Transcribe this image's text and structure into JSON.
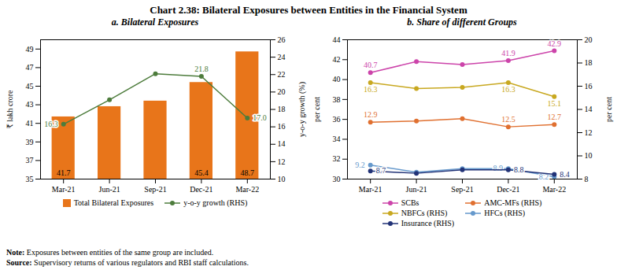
{
  "title": "Chart 2.38: Bilateral Exposures between Entities in the Financial System",
  "annotations": [
    "Note: Exposures between entities of the same group are included.",
    "Source: Supervisory returns of various regulators and RBI staff calculations."
  ],
  "chart_data": [
    {
      "type": "bar",
      "title": "a. Bilateral Exposures",
      "categories": [
        "Mar-21",
        "Jun-21",
        "Sep-21",
        "Dec-21",
        "Mar-22"
      ],
      "ylabel": "₹ lakh crore",
      "y2label": "y-o-y growth (%)",
      "ylim": [
        35,
        50
      ],
      "yticks": [
        35,
        37,
        39,
        41,
        43,
        45,
        47,
        49
      ],
      "y2lim": [
        10,
        26
      ],
      "y2ticks": [
        10,
        12,
        14,
        16,
        18,
        20,
        22,
        24,
        26
      ],
      "legend": "bottom",
      "series": [
        {
          "name": "Total Bilateral Exposures",
          "type": "bar",
          "color": "#E8751A",
          "values": [
            41.7,
            42.8,
            43.4,
            45.4,
            48.7
          ],
          "value_labels": [
            "41.7",
            null,
            null,
            "45.4",
            "48.7"
          ]
        },
        {
          "name": "y-o-y growth (RHS)",
          "type": "line",
          "axis": "y2",
          "color": "#4d7c3c",
          "marker": "o",
          "values": [
            16.3,
            19.1,
            22.1,
            21.8,
            17.0
          ],
          "value_labels": [
            "16.3",
            null,
            null,
            "21.8",
            "17.0"
          ]
        }
      ]
    },
    {
      "type": "line",
      "title": "b. Share of different Groups",
      "categories": [
        "Mar-21",
        "Jun-21",
        "Sep-21",
        "Dec-21",
        "Mar-22"
      ],
      "ylabel": "per cent",
      "y2label": "per cent",
      "ylim": [
        30,
        44
      ],
      "yticks": [
        30,
        32,
        34,
        36,
        38,
        40,
        42,
        44
      ],
      "y2lim": [
        8,
        20
      ],
      "y2ticks": [
        8,
        10,
        12,
        14,
        16,
        18,
        20
      ],
      "legend": "bottom",
      "series": [
        {
          "name": "SCBs",
          "type": "line",
          "color": "#cc44aa",
          "marker": "o",
          "values": [
            40.7,
            41.8,
            41.5,
            41.9,
            42.9
          ],
          "value_labels": [
            "40.7",
            null,
            null,
            "41.9",
            "42.9"
          ]
        },
        {
          "name": "AMC-MFs (RHS)",
          "type": "line",
          "axis": "y2",
          "color": "#e07030",
          "marker": "o",
          "values": [
            12.9,
            13.0,
            13.2,
            12.5,
            12.7
          ],
          "value_labels": [
            "12.9",
            null,
            null,
            "12.5",
            "12.7"
          ]
        },
        {
          "name": "NBFCs (RHS)",
          "type": "line",
          "axis": "y2",
          "color": "#c8a820",
          "marker": "o",
          "values": [
            16.3,
            15.8,
            15.9,
            16.3,
            15.1
          ],
          "value_labels": [
            "16.3",
            null,
            null,
            "16.3",
            "15.1"
          ]
        },
        {
          "name": "HFCs (RHS)",
          "type": "line",
          "axis": "y2",
          "color": "#6699cc",
          "marker": "o",
          "values": [
            9.2,
            8.6,
            8.9,
            8.9,
            8.2
          ],
          "value_labels": [
            "9.2",
            null,
            null,
            "8.9",
            "8.2"
          ]
        },
        {
          "name": "Insurance (RHS)",
          "type": "line",
          "axis": "y2",
          "color": "#223377",
          "marker": "o",
          "values": [
            8.7,
            8.5,
            8.8,
            8.8,
            8.4
          ],
          "value_labels": [
            "8.7",
            null,
            null,
            "8.8",
            "8.4"
          ]
        }
      ]
    }
  ]
}
